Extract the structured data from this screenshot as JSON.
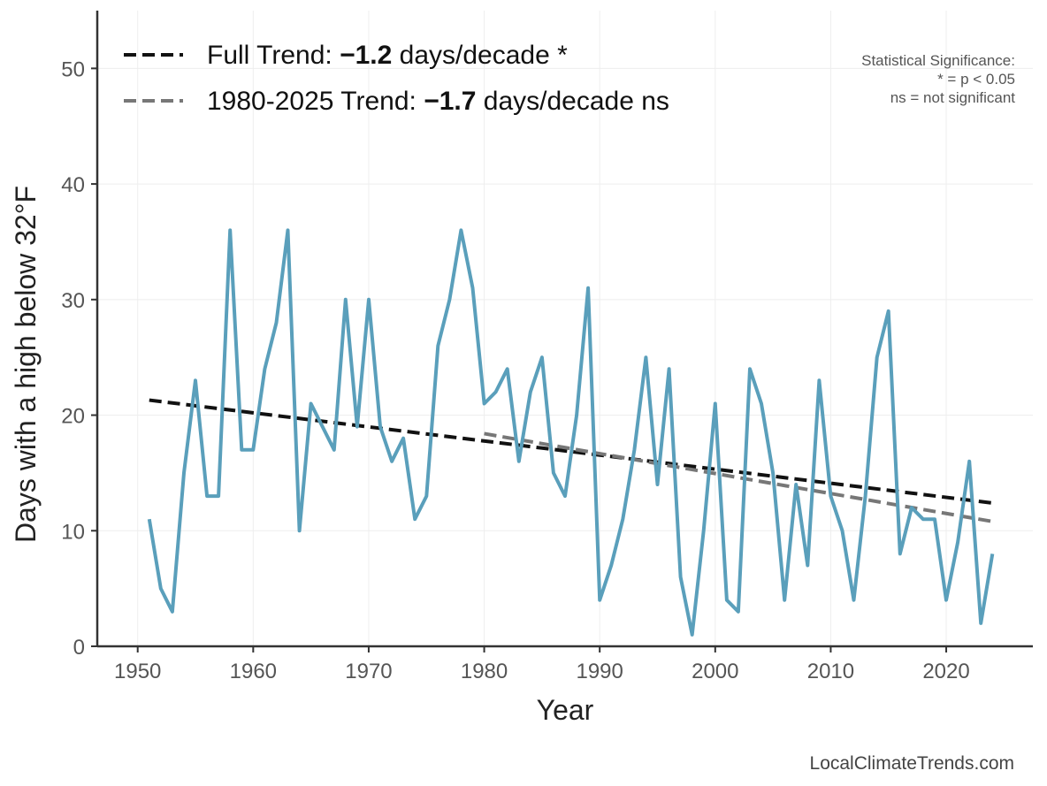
{
  "chart_data": {
    "type": "line",
    "xlabel": "Year",
    "ylabel": "Days with a high below 32°F",
    "xlim": [
      1946.5,
      2027.5
    ],
    "ylim": [
      0,
      55
    ],
    "x_ticks": [
      1950,
      1960,
      1970,
      1980,
      1990,
      2000,
      2010,
      2020
    ],
    "y_ticks": [
      0,
      10,
      20,
      30,
      40,
      50
    ],
    "grid": true,
    "legend_position": "top-left",
    "series": [
      {
        "color": "#5a9fbb",
        "x": [
          1951,
          1952,
          1953,
          1954,
          1955,
          1956,
          1957,
          1958,
          1959,
          1960,
          1961,
          1962,
          1963,
          1964,
          1965,
          1966,
          1967,
          1968,
          1969,
          1970,
          1971,
          1972,
          1973,
          1974,
          1975,
          1976,
          1977,
          1978,
          1979,
          1980,
          1981,
          1982,
          1983,
          1984,
          1985,
          1986,
          1987,
          1988,
          1989,
          1990,
          1991,
          1992,
          1993,
          1994,
          1995,
          1996,
          1997,
          1998,
          1999,
          2000,
          2001,
          2002,
          2003,
          2004,
          2005,
          2006,
          2007,
          2008,
          2009,
          2010,
          2011,
          2012,
          2013,
          2014,
          2015,
          2016,
          2017,
          2018,
          2019,
          2020,
          2021,
          2022,
          2023,
          2024
        ],
        "values": [
          11,
          5,
          3,
          15,
          23,
          13,
          13,
          36,
          17,
          17,
          24,
          28,
          36,
          10,
          21,
          19,
          17,
          30,
          19,
          30,
          19,
          16,
          18,
          11,
          13,
          26,
          30,
          36,
          31,
          21,
          22,
          24,
          16,
          22,
          25,
          15,
          13,
          20,
          31,
          4,
          7,
          11,
          17,
          25,
          14,
          24,
          6,
          1,
          10,
          21,
          4,
          3,
          24,
          21,
          15,
          4,
          14,
          7,
          23,
          13,
          10,
          4,
          13,
          25,
          29,
          8,
          12,
          11,
          11,
          4,
          9,
          16,
          2,
          8
        ]
      }
    ],
    "trends": [
      {
        "label_prefix": "Full Trend: ",
        "label_value": "−1.2",
        "label_suffix": " days/decade *",
        "color": "#111111",
        "x": [
          1951,
          2024
        ],
        "values": [
          21.3,
          12.4
        ]
      },
      {
        "label_prefix": "1980-2025 Trend: ",
        "label_value": "−1.7",
        "label_suffix": " days/decade ns",
        "color": "#777777",
        "x": [
          1980,
          2024
        ],
        "values": [
          18.4,
          10.8
        ]
      }
    ],
    "significance_note": [
      "Statistical Significance:",
      "* = p < 0.05",
      "ns = not significant"
    ]
  },
  "credit": "LocalClimateTrends.com"
}
